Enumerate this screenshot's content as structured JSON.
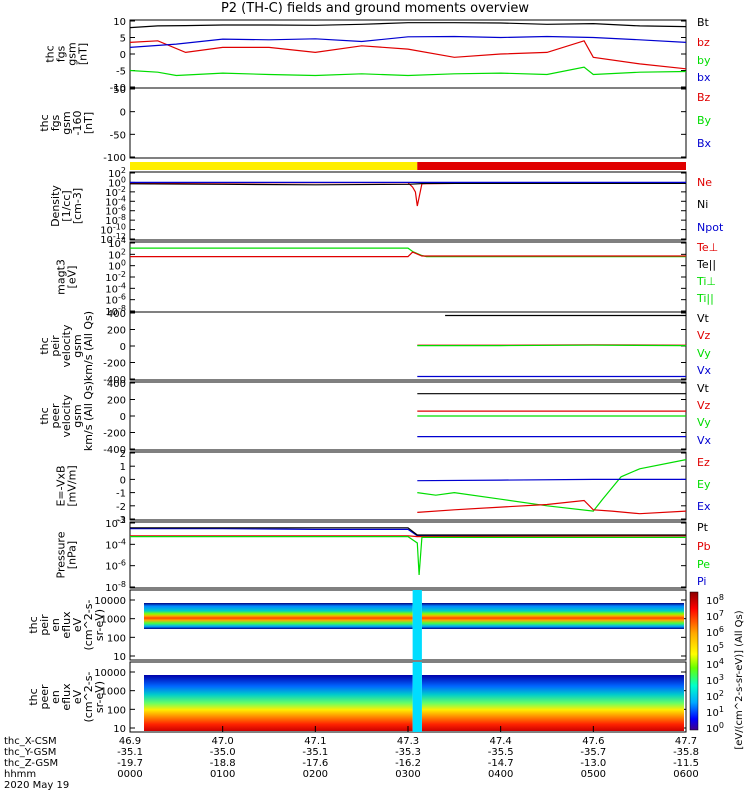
{
  "title": "P2 (TH-C) fields and ground moments overview",
  "date_label": "2020 May 19",
  "colors": {
    "black": "#000000",
    "red": "#e00000",
    "green": "#00dd00",
    "blue": "#0000d0",
    "yellow": "#ffee00"
  },
  "footer": {
    "row_labels": [
      "thc_X-CSM",
      "thc_Y-GSM",
      "thc_Z-GSM",
      "hhmm"
    ],
    "columns": [
      [
        "46.9",
        "-35.1",
        "-19.7",
        "0000"
      ],
      [
        "47.0",
        "-35.0",
        "-18.8",
        "0100"
      ],
      [
        "47.1",
        "-35.1",
        "-17.6",
        "0200"
      ],
      [
        "47.3",
        "-35.3",
        "-16.2",
        "0300"
      ],
      [
        "47.4",
        "-35.5",
        "-14.7",
        "0400"
      ],
      [
        "47.6",
        "-35.7",
        "-13.0",
        "0500"
      ],
      [
        "47.7",
        "-35.8",
        "-11.5",
        "0600"
      ]
    ]
  },
  "colorbar": {
    "label": "[eV/(cm^2-s-sr-eV)] (All Qs)",
    "ticks": [
      "10^8",
      "10^7",
      "10^6",
      "10^5",
      "10^4",
      "10^3",
      "10^2",
      "10^1",
      "10^0"
    ]
  },
  "chart_data": [
    {
      "type": "line",
      "panel": "fgs",
      "ylabel": [
        "thc",
        "fgs",
        "gsm",
        "[nT]"
      ],
      "ylim": [
        -10,
        10
      ],
      "yticks": [
        "10",
        "5",
        "0",
        "-5",
        "-10"
      ],
      "legend": [
        "Bt",
        "bz",
        "by",
        "bx"
      ],
      "series": [
        {
          "name": "Bt",
          "color": "black",
          "x_hours": [
            0,
            0.3,
            0.6,
            1.0,
            1.5,
            2.0,
            2.5,
            3.0,
            3.5,
            4.0,
            4.5,
            5.0,
            5.5,
            6.0
          ],
          "values": [
            8,
            8.5,
            8.6,
            8.8,
            8.8,
            8.7,
            9.0,
            9.5,
            9.5,
            9.4,
            9.0,
            9.2,
            8.5,
            8.3
          ]
        },
        {
          "name": "bz",
          "color": "red",
          "x_hours": [
            0,
            0.3,
            0.6,
            1.0,
            1.5,
            2.0,
            2.5,
            3.0,
            3.5,
            4.0,
            4.5,
            4.9,
            5.0,
            5.5,
            6.0
          ],
          "values": [
            3.5,
            4,
            0.5,
            2,
            2,
            0.5,
            2.5,
            1.5,
            -1,
            0,
            0.5,
            4,
            -1,
            -3,
            -4.5
          ]
        },
        {
          "name": "by",
          "color": "blue",
          "x_hours": [
            0,
            0.5,
            1.0,
            1.5,
            2.0,
            2.5,
            3.0,
            3.5,
            4.0,
            4.5,
            5.0,
            5.5,
            6.0
          ],
          "values": [
            2,
            3,
            4.5,
            4.3,
            4.6,
            3.8,
            5.2,
            5.3,
            5.0,
            5.3,
            5.0,
            4.3,
            3.5
          ]
        },
        {
          "name": "bx",
          "color": "green",
          "x_hours": [
            0,
            0.3,
            0.5,
            1.0,
            1.5,
            2.0,
            2.5,
            3.0,
            3.5,
            4.0,
            4.5,
            4.9,
            5.0,
            5.5,
            6.0
          ],
          "values": [
            -5,
            -5.5,
            -6.5,
            -5.8,
            -6.2,
            -6.5,
            -6.0,
            -6.5,
            -6.0,
            -5.8,
            -6.2,
            -4,
            -6.2,
            -5.5,
            -5.3
          ]
        }
      ]
    },
    {
      "type": "line",
      "panel": "fgs-mag",
      "ylabel": [
        "thc",
        "fgs",
        "gsm",
        "-160",
        "[nT]"
      ],
      "ylim": [
        -130,
        50
      ],
      "yticks": [
        "50",
        "0",
        "-50",
        "-100"
      ],
      "legend": [
        "Bz",
        "By",
        "Bx"
      ],
      "series": []
    },
    {
      "type": "bar",
      "panel": "mode-bar",
      "segments": [
        {
          "color": "yellow",
          "x_hours_start": 0,
          "x_hours_end": 3.1
        },
        {
          "color": "red",
          "x_hours_start": 3.1,
          "x_hours_end": 6.0
        }
      ]
    },
    {
      "type": "line",
      "panel": "density",
      "ylabel": [
        "Density",
        "[1/cc]",
        "[cm-3]"
      ],
      "ylog": true,
      "ylim": [
        -12,
        2
      ],
      "yticks": [
        "10^2",
        "10^0",
        "10^-2",
        "10^-4",
        "10^-6",
        "10^-8",
        "10^-10",
        "10^-12"
      ],
      "legend": [
        "Ne",
        "Ni",
        "Npot"
      ],
      "series": [
        {
          "name": "Ne",
          "color": "red",
          "x_hours": [
            0,
            1,
            2,
            3.0,
            3.05,
            3.08,
            3.1,
            3.15,
            4,
            5,
            6
          ],
          "values": [
            -0.1,
            -0.1,
            -0.05,
            -0.05,
            -1,
            -2,
            -5,
            -0.3,
            -0.1,
            -0.1,
            -0.1
          ]
        },
        {
          "name": "Ni",
          "color": "black",
          "x_hours": [
            0,
            1,
            2,
            3.0,
            3.2,
            4,
            5,
            6
          ],
          "values": [
            -0.3,
            -0.4,
            -0.5,
            -0.4,
            -0.2,
            -0.2,
            -0.2,
            -0.2
          ]
        },
        {
          "name": "Npot",
          "color": "blue",
          "x_hours": [
            0,
            1,
            2,
            3.0,
            3.2,
            4,
            5,
            6
          ],
          "values": [
            0,
            0,
            0,
            0,
            0,
            0,
            0,
            0
          ]
        }
      ]
    },
    {
      "type": "line",
      "panel": "temperature",
      "ylabel": [
        "magt3",
        "[eV]"
      ],
      "ylog": true,
      "ylim": [
        -8,
        4
      ],
      "yticks": [
        "10^4",
        "10^2",
        "10^0",
        "10^-2",
        "10^-4",
        "10^-6",
        "10^-8"
      ],
      "legend": [
        "Te⊥",
        "Te||",
        "Ti⊥",
        "Ti||"
      ],
      "series": [
        {
          "name": "Ti||",
          "color": "green",
          "x_hours": [
            0,
            3.0,
            3.05,
            3.15,
            3.2,
            6
          ],
          "values": [
            3.1,
            3.1,
            2.5,
            1.8,
            1.6,
            1.6
          ]
        },
        {
          "name": "Te⊥",
          "color": "red",
          "x_hours": [
            0,
            3.0,
            3.05,
            3.15,
            3.2,
            6
          ],
          "values": [
            1.6,
            1.6,
            2.4,
            1.7,
            1.7,
            1.7
          ]
        }
      ]
    },
    {
      "type": "line",
      "panel": "peir-velocity",
      "ylabel": [
        "thc",
        "peir",
        "velocity",
        "gsm",
        "km/s (All Qs)"
      ],
      "ylim": [
        -400,
        400
      ],
      "yticks": [
        "400",
        "200",
        "0",
        "-200",
        "-400"
      ],
      "legend": [
        "Vt",
        "Vz",
        "Vy",
        "Vx"
      ],
      "series": [
        {
          "name": "Vt",
          "color": "black",
          "x_hours": [
            3.4,
            4,
            5,
            6
          ],
          "values": [
            370,
            370,
            370,
            370
          ]
        },
        {
          "name": "Vz",
          "color": "red",
          "x_hours": [
            3.1,
            4,
            5,
            6
          ],
          "values": [
            10,
            10,
            15,
            10
          ]
        },
        {
          "name": "Vy",
          "color": "green",
          "x_hours": [
            3.1,
            4,
            5,
            6
          ],
          "values": [
            5,
            5,
            10,
            5
          ]
        },
        {
          "name": "Vx",
          "color": "blue",
          "x_hours": [
            3.1,
            4,
            5,
            6
          ],
          "values": [
            -370,
            -370,
            -370,
            -370
          ]
        }
      ]
    },
    {
      "type": "line",
      "panel": "peer-velocity",
      "ylabel": [
        "thc",
        "peer",
        "velocity",
        "gsm",
        "km/s (All Qs)"
      ],
      "ylim": [
        -400,
        400
      ],
      "yticks": [
        "400",
        "200",
        "0",
        "-200",
        "-400"
      ],
      "legend": [
        "Vt",
        "Vz",
        "Vy",
        "Vx"
      ],
      "series": [
        {
          "name": "Vt",
          "color": "black",
          "x_hours": [
            3.1,
            4,
            5,
            6
          ],
          "values": [
            270,
            270,
            270,
            270
          ]
        },
        {
          "name": "Vz",
          "color": "red",
          "x_hours": [
            3.1,
            4,
            5,
            6
          ],
          "values": [
            60,
            60,
            60,
            60
          ]
        },
        {
          "name": "Vy",
          "color": "green",
          "x_hours": [
            3.1,
            4,
            5,
            6
          ],
          "values": [
            0,
            0,
            0,
            0
          ]
        },
        {
          "name": "Vx",
          "color": "blue",
          "x_hours": [
            3.1,
            4,
            5,
            6
          ],
          "values": [
            -250,
            -250,
            -250,
            -250
          ]
        }
      ]
    },
    {
      "type": "line",
      "panel": "efield",
      "ylabel": [
        "E=-VxB",
        "[mV/m]"
      ],
      "ylim": [
        -3,
        2
      ],
      "yticks": [
        "2",
        "1",
        "0",
        "-1",
        "-2",
        "-3"
      ],
      "legend": [
        "Ez",
        "Ey",
        "Ex"
      ],
      "series": [
        {
          "name": "Ez",
          "color": "green",
          "x_hours": [
            3.1,
            3.3,
            3.5,
            4.0,
            4.5,
            5.0,
            5.1,
            5.3,
            5.5,
            6.0
          ],
          "values": [
            -1.0,
            -1.2,
            -1.0,
            -1.5,
            -2.0,
            -2.4,
            -1.5,
            0.2,
            0.8,
            1.5
          ]
        },
        {
          "name": "Ey",
          "color": "red",
          "x_hours": [
            3.1,
            3.5,
            4.0,
            4.5,
            4.9,
            5.0,
            5.2,
            5.5,
            6.0
          ],
          "values": [
            -2.5,
            -2.3,
            -2.1,
            -1.9,
            -1.6,
            -2.3,
            -2.4,
            -2.6,
            -2.4
          ]
        },
        {
          "name": "Ex",
          "color": "blue",
          "x_hours": [
            3.1,
            4.0,
            5.0,
            6.0
          ],
          "values": [
            -0.1,
            -0.05,
            0.0,
            0.0
          ]
        }
      ]
    },
    {
      "type": "line",
      "panel": "pressure",
      "ylabel": [
        "Pressure",
        "[nPa]"
      ],
      "ylog": true,
      "ylim": [
        -8,
        0
      ],
      "yticks": [
        "10^-2",
        "10^-4",
        "10^-6",
        "10^-8"
      ],
      "legend": [
        "Pt",
        "Pb",
        "Pe",
        "Pi"
      ],
      "series": [
        {
          "name": "Pi",
          "color": "blue",
          "x_hours": [
            0,
            1,
            2,
            3.0,
            3.1,
            6
          ],
          "values": [
            -0.7,
            -0.7,
            -0.8,
            -0.8,
            -1.6,
            -1.6
          ]
        },
        {
          "name": "Pb",
          "color": "red",
          "x_hours": [
            0,
            1,
            2,
            3.0,
            3.1,
            6
          ],
          "values": [
            -1.6,
            -1.6,
            -1.6,
            -1.6,
            -1.7,
            -1.6
          ]
        },
        {
          "name": "Pe",
          "color": "green",
          "x_hours": [
            0,
            3.0,
            3.1,
            3.12,
            3.15,
            6
          ],
          "values": [
            -1.7,
            -1.7,
            -2.5,
            -6.5,
            -1.8,
            -1.8
          ]
        },
        {
          "name": "Pt",
          "color": "black",
          "x_hours": [
            0,
            3.0,
            3.1,
            6
          ],
          "values": [
            -0.6,
            -0.6,
            -1.5,
            -1.5
          ]
        }
      ]
    },
    {
      "type": "heatmap",
      "panel": "peir-spectrogram",
      "ylabel": [
        "thc",
        "peir",
        "en",
        "eflux",
        "eV",
        "(cm^2-s-",
        "sr-eV)"
      ],
      "ylog": true,
      "ylim": [
        10,
        10000
      ],
      "yticks": [
        "10000",
        "1000",
        "100",
        "10"
      ]
    },
    {
      "type": "heatmap",
      "panel": "peer-spectrogram",
      "ylabel": [
        "thc",
        "peer",
        "en",
        "eflux",
        "eV",
        "(cm^2-s-",
        "sr-eV)"
      ],
      "ylog": true,
      "ylim": [
        10,
        10000
      ],
      "yticks": [
        "10000",
        "1000",
        "100",
        "10"
      ]
    }
  ]
}
